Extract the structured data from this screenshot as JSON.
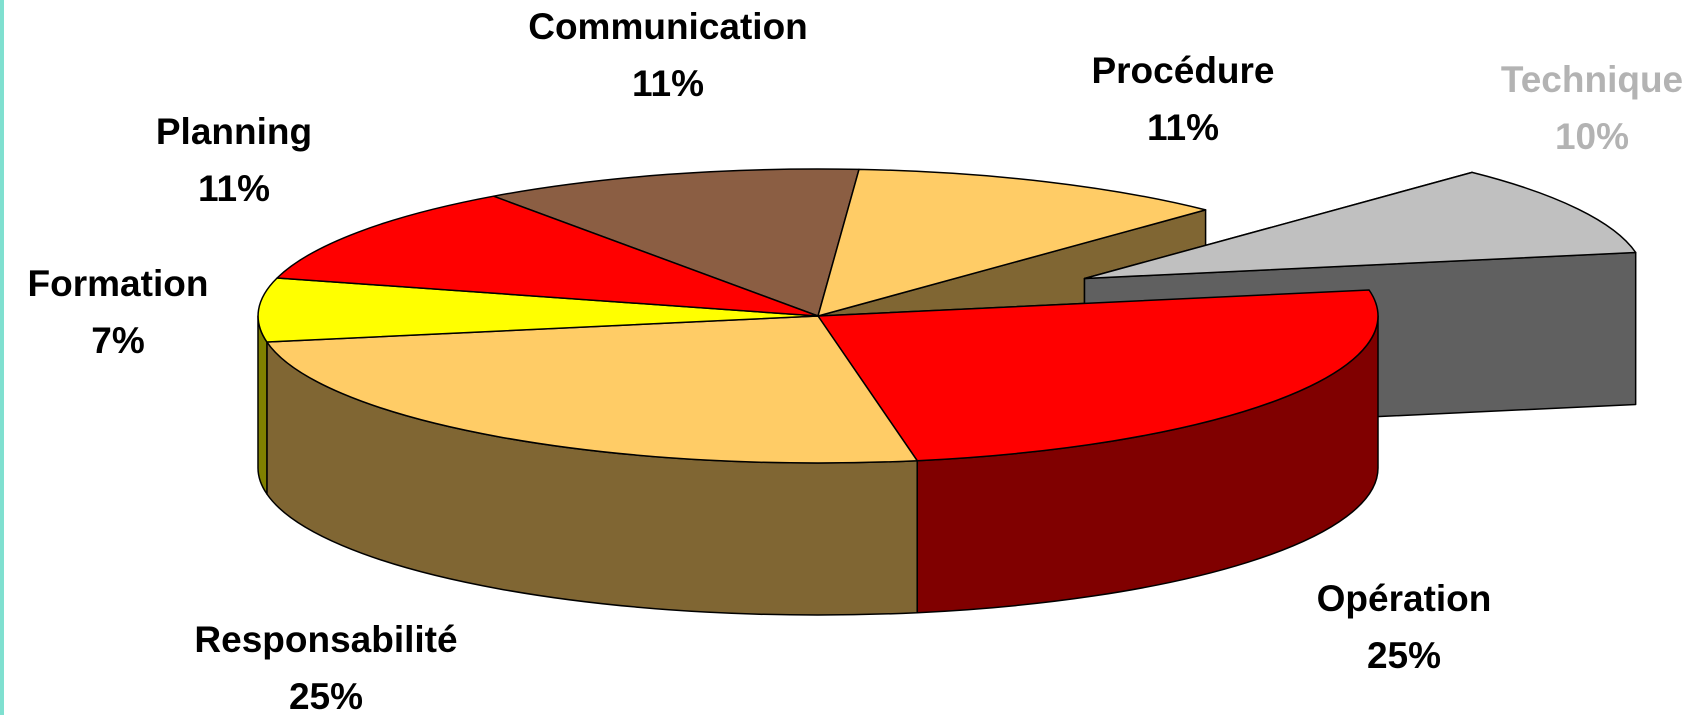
{
  "chart_data": {
    "type": "pie3d",
    "categories": [
      "Communication",
      "Procédure",
      "Technique",
      "Opération",
      "Responsabilité",
      "Formation",
      "Planning"
    ],
    "values": [
      11,
      11,
      10,
      25,
      25,
      7,
      11
    ],
    "value_labels": [
      "11%",
      "11%",
      "10%",
      "25%",
      "25%",
      "7%",
      "11%"
    ],
    "colors": [
      "#8b5e43",
      "#ffcc66",
      "#c0c0c0",
      "#ff0000",
      "#ffcc66",
      "#ffff00",
      "#ff0000"
    ],
    "label_colors": [
      "#000000",
      "#000000",
      "#b3b3b3",
      "#000000",
      "#000000",
      "#000000",
      "#000000"
    ],
    "exploded": "Technique"
  }
}
